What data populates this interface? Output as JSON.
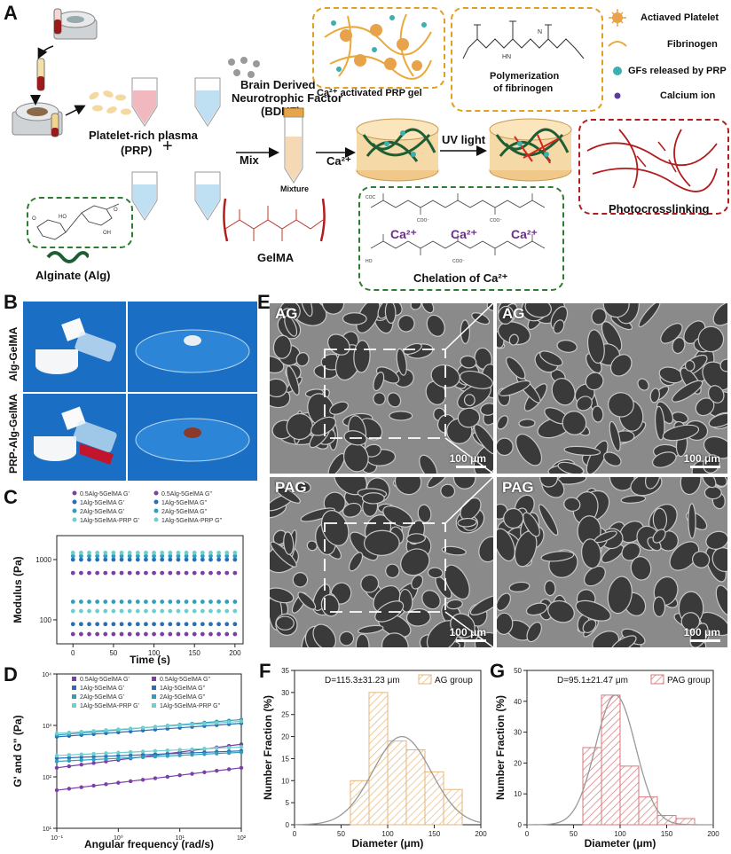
{
  "panelA": {
    "letter": "A",
    "legend": {
      "activated_platelet": "Actiaved Platelet",
      "fibrinogen": "Fibrinogen",
      "gfs": "GFs released by PRP",
      "calcium": "Calcium ion"
    },
    "prp_label": "Platelet-rich plasma",
    "prp_abbr": "(PRP)",
    "plus": "+",
    "bdnf_line1": "Brain Derived",
    "bdnf_line2": "Neurotrophic Factor",
    "bdnf_abbr": "(BDNF)",
    "mix": "Mix",
    "mixture": "Mixture",
    "ca": "Ca²⁺",
    "uv": "UV light",
    "ca_prp_gel": "Ca²⁺ activated PRP gel",
    "polymerization_1": "Polymerization",
    "polymerization_2": "of fibrinogen",
    "photocrosslinking": "Photocrosslinking",
    "chelation": "Chelation of Ca²⁺",
    "ca_ion_1": "Ca²⁺",
    "ca_ion_2": "Ca²⁺",
    "ca_ion_3": "Ca²⁺",
    "alginate": "Alginate (Alg)",
    "gelma": "GelMA"
  },
  "panelB": {
    "letter": "B",
    "row1": "Alg-GelMA",
    "row2": "PRP-Alg-GelMA"
  },
  "panelC": {
    "letter": "C",
    "ylabel": "Modulus (Pa)",
    "xlabel": "Time (s)",
    "legend": [
      "0.5Alg-5GelMA G'",
      "0.5Alg-5GelMA G\"",
      "1Alg-5GelMA G'",
      "1Alg-5GelMA G\"",
      "2Alg-5GelMA G'",
      "2Alg-5GelMA G\"",
      "1Alg-5GelMA-PRP G'",
      "1Alg-5GelMA-PRP G\""
    ],
    "yticks": [
      "1000",
      "100"
    ],
    "xticks": [
      "0",
      "50",
      "100",
      "150",
      "200"
    ]
  },
  "panelD": {
    "letter": "D",
    "ylabel": "G' and G\" (Pa)",
    "xlabel": "Angular frequency (rad/s)",
    "legend": [
      "0.5Alg-5GelMA G'",
      "0.5Alg-5GelMA G\"",
      "1Alg-5GelMA G'",
      "1Alg-5GelMA G\"",
      "2Alg-5GelMA G'",
      "2Alg-5GelMA G\"",
      "1Alg-5GelMA-PRP G'",
      "1Alg-5GelMA-PRP G\""
    ],
    "yticks": [
      "10⁴",
      "10³",
      "10²",
      "10¹"
    ],
    "xticks": [
      "10⁻¹",
      "10⁰",
      "10¹",
      "10²"
    ]
  },
  "panelE": {
    "letter": "E",
    "tl": "AG",
    "tr": "AG",
    "bl": "PAG",
    "br": "PAG",
    "scale": "100 μm"
  },
  "panelF": {
    "letter": "F",
    "ylabel": "Number Fraction (%)",
    "xlabel": "Diameter (μm)",
    "stat": "D=115.3±31.23 μm",
    "legend": "AG group"
  },
  "panelG": {
    "letter": "G",
    "ylabel": "Number Fraction (%)",
    "xlabel": "Diameter (μm)",
    "stat": "D=95.1±21.47 μm",
    "legend": "PAG group"
  },
  "chart_data": [
    {
      "type": "scatter",
      "title": "",
      "xlabel": "Time (s)",
      "ylabel": "Modulus (Pa)",
      "xlim": [
        -20,
        210
      ],
      "yscale": "log",
      "ylim": [
        40,
        2500
      ],
      "x": [
        0,
        10,
        20,
        30,
        40,
        50,
        60,
        70,
        80,
        90,
        100,
        110,
        120,
        130,
        140,
        150,
        160,
        170,
        180,
        190,
        200
      ],
      "series": [
        {
          "name": "0.5Alg-5GelMA G'",
          "level": 600,
          "color": "#7b3fa8"
        },
        {
          "name": "0.5Alg-5GelMA G\"",
          "level": 58,
          "color": "#7b3fa8"
        },
        {
          "name": "1Alg-5GelMA G'",
          "level": 1000,
          "color": "#2a6fb5"
        },
        {
          "name": "1Alg-5GelMA G\"",
          "level": 85,
          "color": "#2a6fb5"
        },
        {
          "name": "2Alg-5GelMA G'",
          "level": 1150,
          "color": "#2f9fbf"
        },
        {
          "name": "2Alg-5GelMA G\"",
          "level": 200,
          "color": "#2f9fbf"
        },
        {
          "name": "1Alg-5GelMA-PRP G'",
          "level": 1300,
          "color": "#6fcfcf"
        },
        {
          "name": "1Alg-5GelMA-PRP G\"",
          "level": 140,
          "color": "#6fcfcf"
        }
      ]
    },
    {
      "type": "line",
      "title": "",
      "xlabel": "Angular frequency (rad/s)",
      "ylabel": "G' and G\" (Pa)",
      "xscale": "log",
      "yscale": "log",
      "xlim": [
        0.1,
        100
      ],
      "ylim": [
        10,
        10000
      ],
      "series": [
        {
          "name": "0.5Alg-5GelMA G'",
          "start": 150,
          "end": 430,
          "color": "#7b3fa8"
        },
        {
          "name": "0.5Alg-5GelMA G\"",
          "start": 55,
          "end": 150,
          "color": "#7b3fa8"
        },
        {
          "name": "1Alg-5GelMA G'",
          "start": 600,
          "end": 1100,
          "color": "#2a6fb5"
        },
        {
          "name": "1Alg-5GelMA G\"",
          "start": 230,
          "end": 320,
          "color": "#2a6fb5"
        },
        {
          "name": "2Alg-5GelMA G'",
          "start": 650,
          "end": 1300,
          "color": "#2f9fbf"
        },
        {
          "name": "2Alg-5GelMA G\"",
          "start": 200,
          "end": 300,
          "color": "#2f9fbf"
        },
        {
          "name": "1Alg-5GelMA-PRP G'",
          "start": 700,
          "end": 1200,
          "color": "#6fcfcf"
        },
        {
          "name": "1Alg-5GelMA-PRP G\"",
          "start": 260,
          "end": 380,
          "color": "#6fcfcf"
        }
      ]
    },
    {
      "type": "bar",
      "title": "",
      "xlabel": "Diameter (μm)",
      "ylabel": "Number Fraction (%)",
      "xlim": [
        0,
        200
      ],
      "ylim": [
        0,
        35
      ],
      "bin_edges": [
        60,
        80,
        100,
        120,
        140,
        160,
        180
      ],
      "values": [
        10,
        30,
        19,
        17,
        12,
        8
      ],
      "fit": {
        "mean": 115.3,
        "sd": 31.23,
        "peak": 20
      },
      "series_name": "AG group",
      "color": "#e5b77a",
      "xticks": [
        0,
        50,
        100,
        150,
        200
      ],
      "yticks": [
        0,
        5,
        10,
        15,
        20,
        25,
        30,
        35
      ]
    },
    {
      "type": "bar",
      "title": "",
      "xlabel": "Diameter (μm)",
      "ylabel": "Number Fraction (%)",
      "xlim": [
        0,
        200
      ],
      "ylim": [
        0,
        50
      ],
      "bin_edges": [
        60,
        80,
        100,
        120,
        140,
        160,
        180
      ],
      "values": [
        25,
        42,
        19,
        9,
        3,
        2
      ],
      "fit": {
        "mean": 95.1,
        "sd": 21.47,
        "peak": 42
      },
      "series_name": "PAG group",
      "color": "#d9777a",
      "xticks": [
        0,
        50,
        100,
        150,
        200
      ],
      "yticks": [
        0,
        10,
        20,
        30,
        40,
        50
      ]
    }
  ]
}
